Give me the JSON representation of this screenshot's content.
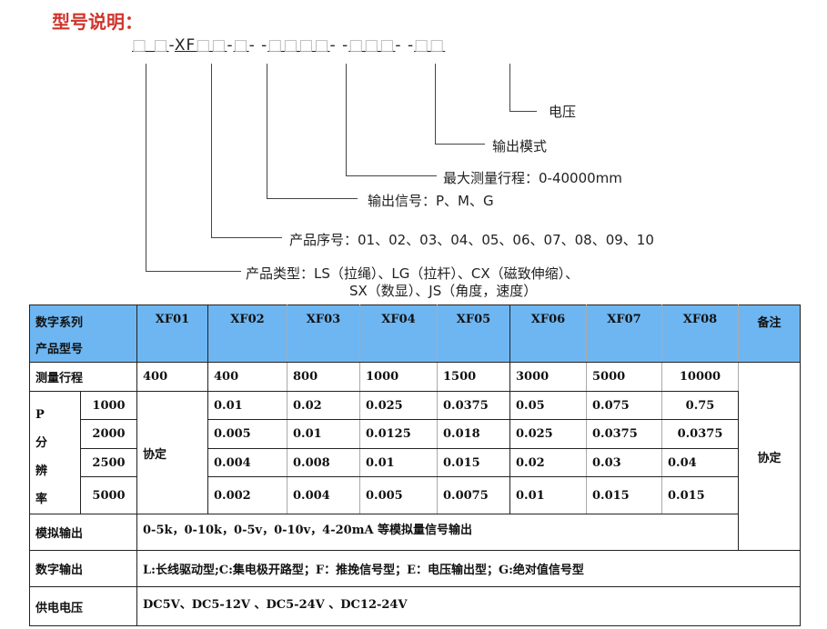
{
  "title": "型号说明：",
  "code": {
    "p1": "□ □",
    "d1": "-",
    "p2a": "XF",
    "p2b": "□□",
    "d2": "-",
    "p3": "□",
    "d3": "- -",
    "p4": "□□□□",
    "d4": "- -",
    "p5": "□□□",
    "d5": "- -",
    "p6": "□□"
  },
  "labels": {
    "voltage": "电压",
    "output_mode": "输出模式",
    "max_range": "最大测量行程：0-40000mm",
    "output_signal": "输出信号：P、M、G",
    "serial": "产品序号：01、02、03、04、05、06、07、08、09、10",
    "type_line1": "产品类型：LS（拉绳）、LG（拉杆）、CX（磁致伸缩）、",
    "type_line2": "SX（数显）、JS（角度，速度）"
  },
  "table": {
    "header_line1": "数字系列",
    "header_line2": "产品型号",
    "models": [
      "XF01",
      "XF02",
      "XF03",
      "XF04",
      "XF05",
      "XF06",
      "XF07",
      "XF08"
    ],
    "remark_header": "备注",
    "range_label": "测量行程",
    "ranges": [
      "400",
      "400",
      "800",
      "1000",
      "1500",
      "3000",
      "5000",
      "10000"
    ],
    "resolution_label": [
      "P",
      "分",
      "辨",
      "率"
    ],
    "resolution_rows": [
      {
        "p": "1000",
        "values": [
          "0.01",
          "0.02",
          "0.025",
          "0.0375",
          "0.05",
          "0.075",
          "0.75"
        ]
      },
      {
        "p": "2000",
        "values": [
          "0.005",
          "0.01",
          "0.0125",
          "0.018",
          "0.025",
          "0.0375",
          "0.0375"
        ]
      },
      {
        "p": "2500",
        "values": [
          "0.004",
          "0.008",
          "0.01",
          "0.015",
          "0.02",
          "0.03",
          "0.04"
        ]
      },
      {
        "p": "5000",
        "values": [
          "0.002",
          "0.004",
          "0.005",
          "0.0075",
          "0.01",
          "0.015",
          "0.015"
        ]
      }
    ],
    "xf01_resolution": "协定",
    "remark_value": "协定",
    "analog_label": "模拟输出",
    "analog_value": "0-5k，0-10k，0-5v，0-10v，4-20mA 等模拟量信号输出",
    "digital_label": "数字输出",
    "digital_value": "L:长线驱动型;C:集电极开路型；F：推挽信号型；E：电压输出型；G:绝对值信号型",
    "power_label": "供电电压",
    "power_value": "DC5V、DC5-12V 、DC5-24V 、DC12-24V"
  }
}
